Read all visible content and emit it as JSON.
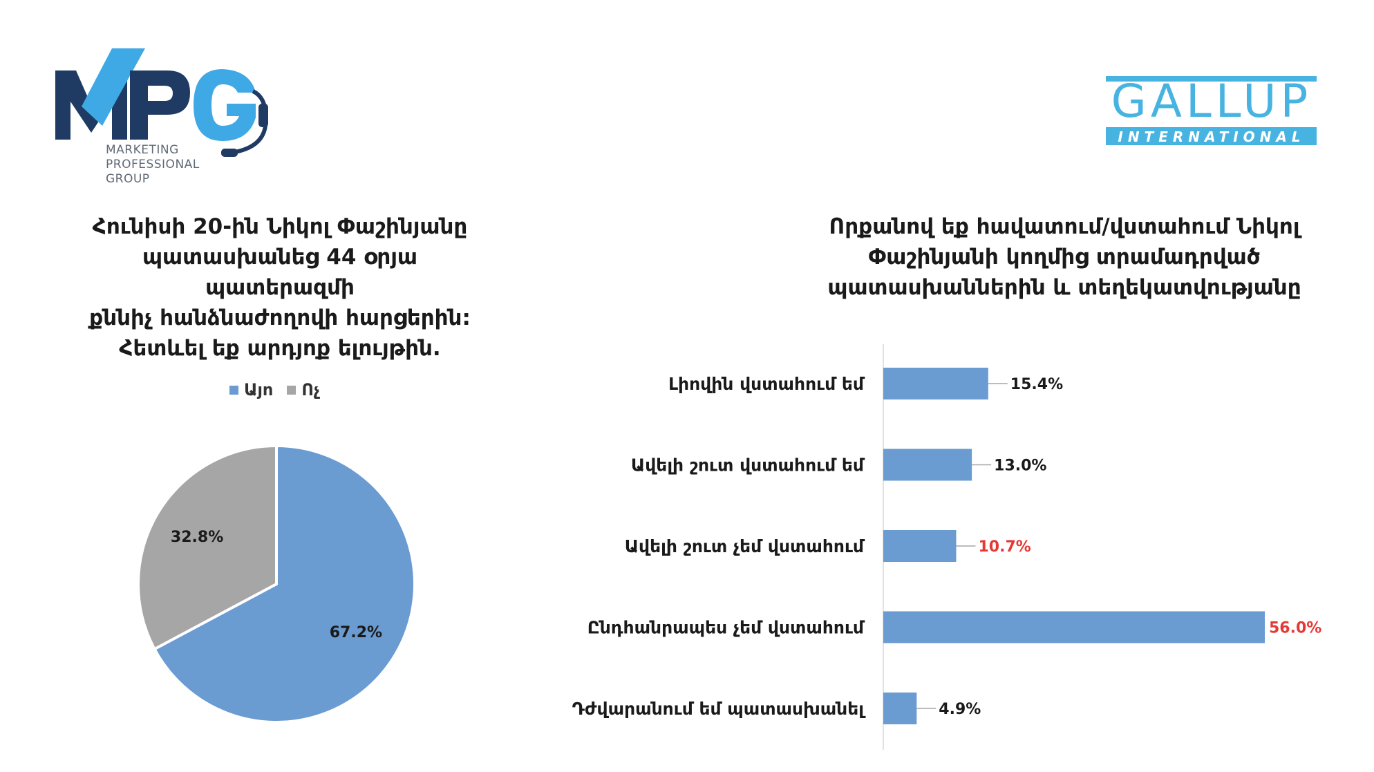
{
  "logos": {
    "mpg": {
      "mark": "MPG",
      "subtitle": [
        "MARKETING",
        "PROFESSIONAL",
        "GROUP"
      ],
      "colors": {
        "navy": "#1f3b63",
        "blue": "#3fa9e5"
      }
    },
    "gallup": {
      "word": "GALLUP",
      "subword": "INTERNATIONAL",
      "colors": {
        "blue": "#47b3e0"
      }
    }
  },
  "chart_data": [
    {
      "type": "pie",
      "title": "Հունիսի 20-ին Նիկոլ Փաշինյանը պատասխանեց 44 օրյա պատերազմի քննիչ հանձնաժողովի հարցերին: Հետևել եք արդյոք ելույթին.",
      "title_lines": [
        "Հունիսի 20-ին Նիկոլ Փաշինյանը",
        "պատասխանեց 44 օրյա պատերազմի",
        "քննիչ հանձնաժողովի հարցերին:",
        "Հետևել եք արդյոք ելույթին."
      ],
      "legend_position": "top",
      "slices": [
        {
          "name": "Այո",
          "value": 67.2,
          "label": "67.2%",
          "color": "#6a9bd1"
        },
        {
          "name": "Ոչ",
          "value": 32.8,
          "label": "32.8%",
          "color": "#a6a6a6"
        }
      ]
    },
    {
      "type": "bar",
      "orientation": "horizontal",
      "title": "Որքանով եք հավատում/վստահում Նիկոլ Փաշինյանի կողմից տրամադրված պատասխաններին և տեղեկատվությանը",
      "title_lines": [
        "Որքանով եք հավատում/վստահում Նիկոլ",
        "Փաշինյանի կողմից տրամադրված",
        "պատասխաններին և տեղեկատվությանը"
      ],
      "categories": [
        "Լիովին վստահում եմ",
        "Ավելի շուտ վստահում եմ",
        "Ավելի շուտ չեմ վստահում",
        "Ընդհանրապես չեմ վստահում",
        "Դժվարանում եմ պատասխանել"
      ],
      "values": [
        15.4,
        13.0,
        10.7,
        56.0,
        4.9
      ],
      "labels": [
        "15.4%",
        "13.0%",
        "10.7%",
        "56.0%",
        "4.9%"
      ],
      "label_colors": [
        "#1a1a1a",
        "#1a1a1a",
        "#e53935",
        "#e53935",
        "#1a1a1a"
      ],
      "bar_color": "#6a9bd1",
      "xlim": [
        0,
        56
      ]
    }
  ]
}
